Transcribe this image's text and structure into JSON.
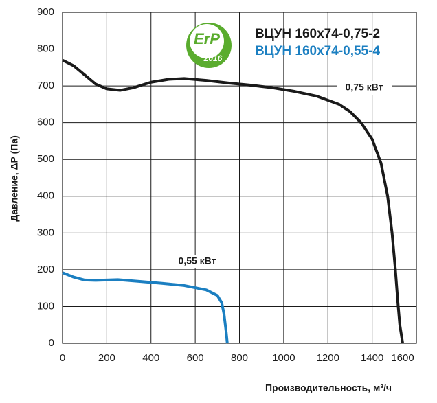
{
  "chart_data": {
    "type": "line",
    "y_label": "Давление, ΔP (Па)",
    "x_label": "Производительность,  м³/ч",
    "xlim": [
      0,
      1600
    ],
    "xticks": [
      0,
      200,
      400,
      600,
      800,
      1000,
      1200,
      1400,
      1600
    ],
    "ylim": [
      0,
      900
    ],
    "yticks": [
      0,
      100,
      200,
      300,
      400,
      500,
      600,
      700,
      800,
      900
    ],
    "grid": true,
    "logo": {
      "text": "ErP",
      "year": "2016"
    },
    "series": [
      {
        "name": "ВЦУН 160х74-0,75-2",
        "color": "#1a1a1a",
        "x": [
          0,
          50,
          100,
          150,
          200,
          260,
          320,
          400,
          480,
          550,
          650,
          750,
          850,
          950,
          1050,
          1150,
          1250,
          1300,
          1350,
          1400,
          1440,
          1470,
          1490,
          1505,
          1515,
          1525,
          1538
        ],
        "values": [
          770,
          755,
          730,
          705,
          692,
          688,
          695,
          710,
          718,
          720,
          715,
          708,
          702,
          695,
          685,
          672,
          650,
          630,
          600,
          555,
          490,
          400,
          300,
          200,
          120,
          50,
          0
        ],
        "annotation": "0,75 кВт"
      },
      {
        "name": "ВЦУН 160х74-0,55-4",
        "color": "#1b7fc1",
        "x": [
          0,
          50,
          100,
          150,
          250,
          350,
          450,
          550,
          650,
          700,
          720,
          730,
          740,
          745
        ],
        "values": [
          192,
          180,
          172,
          171,
          173,
          168,
          163,
          157,
          145,
          130,
          110,
          80,
          30,
          0
        ],
        "annotation": "0,55 кВт"
      }
    ]
  }
}
